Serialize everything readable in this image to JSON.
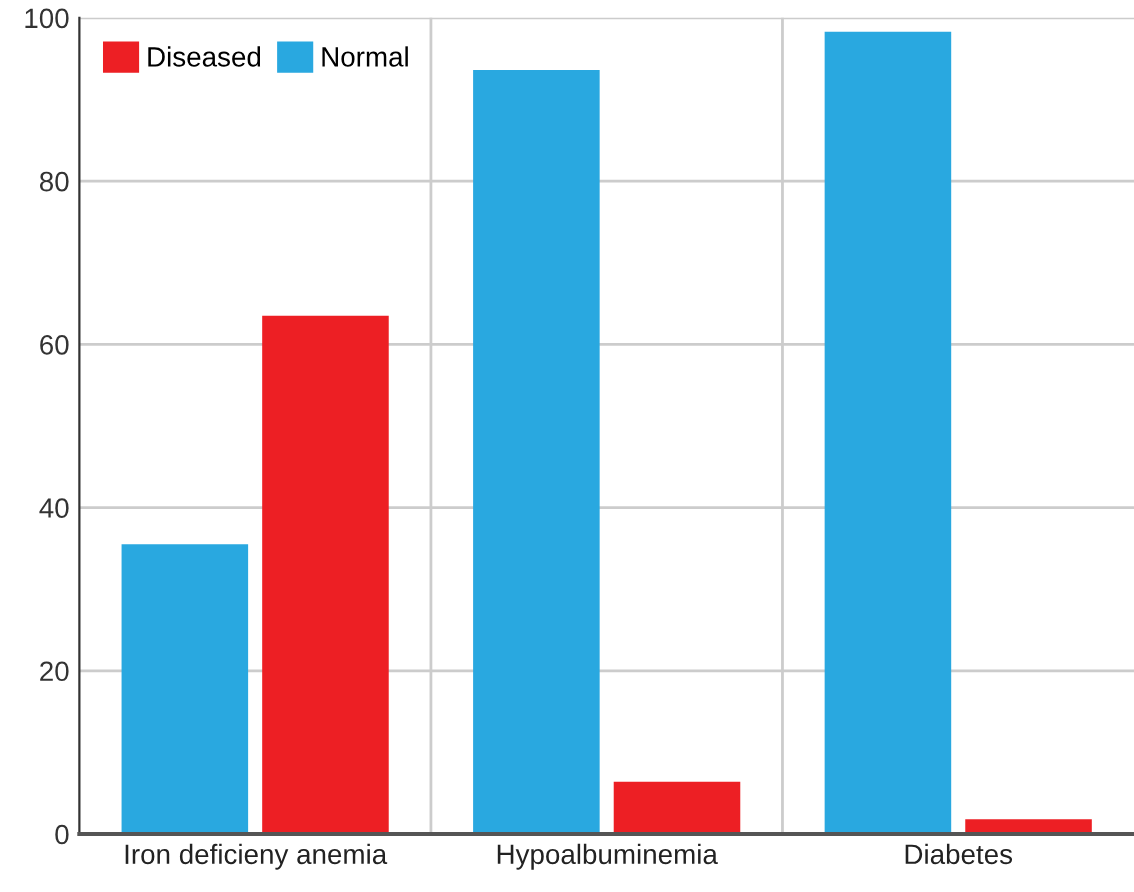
{
  "chart_data": {
    "type": "bar",
    "categories": [
      "Iron deficieny anemia",
      "Hypoalbuminemia",
      "Diabetes"
    ],
    "series": [
      {
        "name": "Normal",
        "color": "#29a8e0",
        "values": [
          35.5,
          93.6,
          98.3
        ]
      },
      {
        "name": "Diseased",
        "color": "#ed1f24",
        "values": [
          63.5,
          6.4,
          1.8
        ]
      }
    ],
    "ylim": [
      0,
      100
    ],
    "yticks": [
      0,
      20,
      40,
      60,
      80,
      100
    ],
    "grid": true,
    "legend": "top left"
  }
}
